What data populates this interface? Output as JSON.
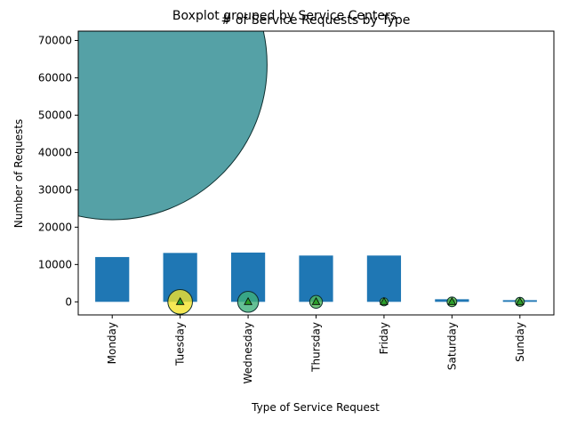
{
  "chart_data": {
    "type": "bar",
    "suptitle": "Boxplot grouped by Service Centers",
    "title": "# of Service Requests by Type",
    "xlabel": "Type of Service Request",
    "ylabel": "Number of Requests",
    "categories": [
      "Monday",
      "Tuesday",
      "Wednesday",
      "Thursday",
      "Friday",
      "Saturday",
      "Sunday"
    ],
    "values": [
      12000,
      13100,
      13200,
      12400,
      12400,
      700,
      450
    ],
    "ylim": [
      -3500,
      72500
    ],
    "yticks": [
      0,
      10000,
      20000,
      30000,
      40000,
      50000,
      60000,
      70000
    ],
    "ytick_labels": [
      "0",
      "10000",
      "20000",
      "30000",
      "40000",
      "50000",
      "60000",
      "70000"
    ],
    "bar_color": "#1f77b4",
    "grid": false,
    "overlay_bubbles": [
      {
        "category": "Monday",
        "value": 63500,
        "size_value": 41500,
        "color": "#2a8a90"
      },
      {
        "category": "Tuesday",
        "value": 0,
        "size_value": 3300,
        "color": "#f2e22b"
      },
      {
        "category": "Wednesday",
        "value": 0,
        "size_value": 2800,
        "color": "#3fb07a"
      },
      {
        "category": "Thursday",
        "value": 0,
        "size_value": 1700,
        "color": "#4fb85a"
      },
      {
        "category": "Friday",
        "value": 0,
        "size_value": 1100,
        "color": "#5cbf40"
      },
      {
        "category": "Saturday",
        "value": 0,
        "size_value": 1300,
        "color": "#5cbf40"
      },
      {
        "category": "Sunday",
        "value": 0,
        "size_value": 1200,
        "color": "#5cbf40"
      }
    ],
    "mean_markers": [
      {
        "category": "Tuesday",
        "value": 0
      },
      {
        "category": "Wednesday",
        "value": 0
      },
      {
        "category": "Thursday",
        "value": 0
      },
      {
        "category": "Friday",
        "value": 0
      },
      {
        "category": "Saturday",
        "value": 0
      },
      {
        "category": "Sunday",
        "value": 0
      }
    ],
    "mean_marker_color": "#2ca02c"
  }
}
